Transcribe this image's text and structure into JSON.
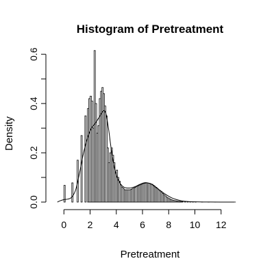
{
  "chart_data": {
    "type": "bar",
    "title": "Histogram of Pretreatment",
    "xlabel": "Pretreatment",
    "ylabel": "Density",
    "xlim": [
      -0.8,
      14
    ],
    "ylim": [
      0,
      0.62
    ],
    "x_ticks": [
      0,
      2,
      4,
      6,
      8,
      10,
      12
    ],
    "y_ticks": [
      0.0,
      0.2,
      0.4,
      0.6
    ],
    "x_tick_labels": [
      "0",
      "2",
      "4",
      "6",
      "8",
      "10",
      "12"
    ],
    "y_tick_labels": [
      "0.0",
      "0.2",
      "0.4",
      "0.6"
    ],
    "grid": false,
    "histogram": {
      "bin_width": 0.1,
      "bin_starts": [
        0.0,
        0.6,
        1.0,
        1.3,
        1.6,
        1.8,
        1.9,
        2.0,
        2.1,
        2.2,
        2.3,
        2.4,
        2.5,
        2.6,
        2.7,
        2.8,
        2.9,
        3.0,
        3.1,
        3.2,
        3.3,
        3.4,
        3.5,
        3.6,
        3.7,
        3.8,
        3.9,
        4.0,
        4.1,
        4.2,
        4.3,
        4.4,
        4.5,
        4.6,
        4.7,
        4.8,
        4.9,
        5.0,
        5.1,
        5.2,
        5.3,
        5.4,
        5.5,
        5.6,
        5.7,
        5.8,
        5.9,
        6.0,
        6.1,
        6.2,
        6.3,
        6.4,
        6.5,
        6.6,
        6.7,
        6.8,
        6.9,
        7.0,
        7.1,
        7.2,
        7.3,
        7.4,
        7.5,
        7.6,
        7.7,
        7.8,
        7.9,
        8.0,
        8.1,
        8.2,
        8.3,
        8.4,
        8.5,
        8.6,
        8.7,
        8.8,
        8.9,
        9.0,
        9.2,
        9.4,
        9.6,
        9.8,
        10.0,
        10.5,
        11.0,
        11.5,
        12.0,
        12.5,
        13.0
      ],
      "densities": [
        0.068,
        0.078,
        0.17,
        0.27,
        0.35,
        0.38,
        0.42,
        0.43,
        0.41,
        0.3,
        0.615,
        0.4,
        0.28,
        0.31,
        0.42,
        0.45,
        0.465,
        0.44,
        0.39,
        0.35,
        0.22,
        0.16,
        0.2,
        0.22,
        0.19,
        0.16,
        0.12,
        0.13,
        0.1,
        0.085,
        0.07,
        0.06,
        0.055,
        0.05,
        0.05,
        0.05,
        0.05,
        0.05,
        0.052,
        0.055,
        0.058,
        0.06,
        0.062,
        0.065,
        0.068,
        0.07,
        0.072,
        0.075,
        0.076,
        0.077,
        0.078,
        0.077,
        0.076,
        0.074,
        0.072,
        0.068,
        0.064,
        0.06,
        0.055,
        0.05,
        0.045,
        0.04,
        0.035,
        0.03,
        0.025,
        0.02,
        0.017,
        0.014,
        0.011,
        0.009,
        0.007,
        0.006,
        0.005,
        0.004,
        0.003,
        0.0025,
        0.002,
        0.0015,
        0.0012,
        0.001,
        0.0008,
        0.0006,
        0.0005,
        0.0004,
        0.0003,
        0.0002,
        0.0002,
        0.0001,
        0.0001
      ]
    },
    "density_curve": {
      "x": [
        -0.5,
        -0.3,
        0.0,
        0.3,
        0.6,
        0.9,
        1.2,
        1.5,
        1.8,
        2.1,
        2.4,
        2.7,
        3.0,
        3.2,
        3.4,
        3.6,
        3.8,
        4.0,
        4.3,
        4.6,
        5.0,
        5.4,
        5.8,
        6.1,
        6.4,
        6.7,
        7.0,
        7.4,
        7.8,
        8.2,
        8.6,
        9.0,
        9.5,
        10.0,
        11.0,
        12.0,
        13.0
      ],
      "y": [
        0.0,
        0.005,
        0.01,
        0.012,
        0.02,
        0.05,
        0.12,
        0.2,
        0.26,
        0.3,
        0.32,
        0.345,
        0.37,
        0.36,
        0.3,
        0.22,
        0.155,
        0.11,
        0.075,
        0.06,
        0.057,
        0.062,
        0.072,
        0.078,
        0.078,
        0.072,
        0.06,
        0.045,
        0.03,
        0.018,
        0.01,
        0.005,
        0.002,
        0.001,
        0.0003,
        0.0001,
        0.0
      ]
    }
  }
}
